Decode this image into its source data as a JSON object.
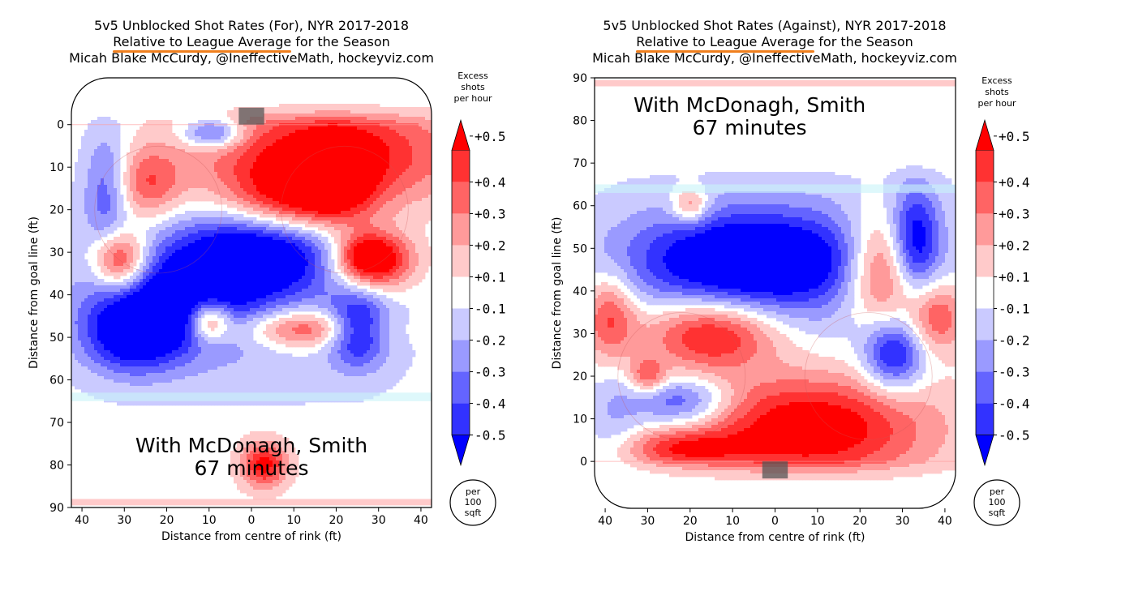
{
  "chart_data": [
    {
      "type": "heatmap",
      "title": {
        "line1": "5v5 Unblocked Shot Rates (For), NYR 2017-2018",
        "line2_highlight": "Relative to League Average",
        "line2_rest": " for the Season",
        "line3": "Micah Blake McCurdy, @IneffectiveMath, hockeyviz.com"
      },
      "xlabel": "Distance from centre of rink (ft)",
      "ylabel": "Distance from goal line (ft)",
      "xticks": [
        "40",
        "30",
        "20",
        "10",
        "0",
        "10",
        "20",
        "30",
        "40"
      ],
      "yticks": [
        "0",
        "10",
        "20",
        "30",
        "40",
        "50",
        "60",
        "70",
        "80",
        "90"
      ],
      "xlim": [
        -42.5,
        42.5
      ],
      "ylim": [
        -11,
        90
      ],
      "annotation": {
        "line1": "With McDonagh, Smith",
        "line2": "67 minutes"
      },
      "blobs": [
        {
          "x": 18,
          "y": 7,
          "sx": 22,
          "sy": 9,
          "v": 0.55
        },
        {
          "x": 10,
          "y": 18,
          "sx": 11,
          "sy": 6,
          "v": 0.45
        },
        {
          "x": 20,
          "y": 13,
          "sx": 6,
          "sy": 7,
          "v": 0.3
        },
        {
          "x": 29,
          "y": 32,
          "sx": 7,
          "sy": 5,
          "v": 0.6
        },
        {
          "x": -31,
          "y": 32,
          "sx": 4.5,
          "sy": 5,
          "v": 0.6
        },
        {
          "x": -25,
          "y": 14,
          "sx": 6,
          "sy": 6,
          "v": 0.35
        },
        {
          "x": -10,
          "y": 46,
          "sx": 3.5,
          "sy": 3.5,
          "v": 0.55
        },
        {
          "x": 13,
          "y": 48,
          "sx": 11,
          "sy": 3.2,
          "v": 0.45
        },
        {
          "x": 27,
          "y": 31,
          "sx": 4.5,
          "sy": 3.5,
          "v": 0.3
        },
        {
          "x": 3,
          "y": 80,
          "sx": 3.8,
          "sy": 3.8,
          "v": 0.5
        },
        {
          "x": 2,
          "y": 30,
          "sx": 14,
          "sy": 7,
          "v": -0.6
        },
        {
          "x": -18,
          "y": 42,
          "sx": 14,
          "sy": 8,
          "v": -0.5
        },
        {
          "x": 25,
          "y": 48,
          "sx": 5,
          "sy": 6,
          "v": -0.55
        },
        {
          "x": -28,
          "y": 50,
          "sx": 8,
          "sy": 6,
          "v": -0.45
        },
        {
          "x": -34,
          "y": 15,
          "sx": 4,
          "sy": 10,
          "v": -0.35
        },
        {
          "x": -9,
          "y": 2,
          "sx": 5,
          "sy": 2.5,
          "v": -0.45
        },
        {
          "x": 0,
          "y": 40,
          "sx": 32,
          "sy": 20,
          "v": -0.12
        }
      ]
    },
    {
      "type": "heatmap",
      "title": {
        "line1": "5v5 Unblocked Shot Rates (Against), NYR 2017-2018",
        "line2_highlight": "Relative to League Average",
        "line2_rest": " for the Season",
        "line3": "Micah Blake McCurdy, @IneffectiveMath, hockeyviz.com"
      },
      "xlabel": "Distance from centre of rink (ft)",
      "ylabel": "Distance from goal line (ft)",
      "xticks": [
        "40",
        "30",
        "20",
        "10",
        "0",
        "10",
        "20",
        "30",
        "40"
      ],
      "yticks": [
        "0",
        "10",
        "20",
        "30",
        "40",
        "50",
        "60",
        "70",
        "80",
        "90"
      ],
      "xlim": [
        -42.5,
        42.5
      ],
      "ylim": [
        -11,
        90
      ],
      "annotation": {
        "line1": "With McDonagh, Smith",
        "line2": "67 minutes"
      },
      "blobs": [
        {
          "x": 8,
          "y": 8,
          "sx": 20,
          "sy": 9,
          "v": 0.6
        },
        {
          "x": -15,
          "y": 30,
          "sx": 11,
          "sy": 6,
          "v": 0.55
        },
        {
          "x": 25,
          "y": 45,
          "sx": 6,
          "sy": 9,
          "v": 0.55
        },
        {
          "x": 38,
          "y": 34,
          "sx": 5,
          "sy": 6,
          "v": 0.4
        },
        {
          "x": -39,
          "y": 34,
          "sx": 4.5,
          "sy": 7,
          "v": 0.4
        },
        {
          "x": -20,
          "y": 60,
          "sx": 3,
          "sy": 3,
          "v": 0.35
        },
        {
          "x": -30,
          "y": 20,
          "sx": 3,
          "sy": 3,
          "v": 0.35
        },
        {
          "x": -22,
          "y": 3,
          "sx": 10,
          "sy": 3,
          "v": 0.35
        },
        {
          "x": -5,
          "y": 47,
          "sx": 20,
          "sy": 8,
          "v": -0.65
        },
        {
          "x": 33,
          "y": 52,
          "sx": 4,
          "sy": 9,
          "v": -0.5
        },
        {
          "x": 28,
          "y": 25,
          "sx": 5,
          "sy": 6,
          "v": -0.5
        },
        {
          "x": -22,
          "y": 14,
          "sx": 8,
          "sy": 4,
          "v": -0.4
        },
        {
          "x": -38,
          "y": 10,
          "sx": 5,
          "sy": 8,
          "v": -0.15
        },
        {
          "x": 0,
          "y": 45,
          "sx": 32,
          "sy": 20,
          "v": -0.12
        }
      ]
    }
  ],
  "colorbar": {
    "title_lines": [
      "Excess",
      "shots",
      "per hour"
    ],
    "labels": [
      "+0.5",
      "+0.4",
      "+0.3",
      "+0.2",
      "+0.1",
      "-0.1",
      "-0.2",
      "-0.3",
      "-0.4",
      "-0.5"
    ],
    "colors": [
      "#ff0000",
      "#ff3232",
      "#ff6464",
      "#ff9a9a",
      "#ffcaca",
      "#ffffff",
      "#cacaff",
      "#9a9aff",
      "#6464ff",
      "#3232ff",
      "#0000ff"
    ],
    "unit_lines": [
      "per",
      "100",
      "sqft"
    ]
  }
}
